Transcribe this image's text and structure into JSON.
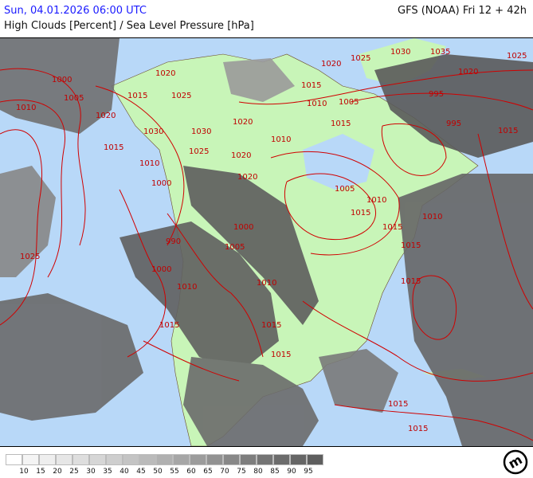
{
  "header": {
    "datetime": "Sun, 04.01.2026 06:00 UTC",
    "model_run": "GFS (NOAA) Fri 12 + 42h",
    "parameter": "High Clouds [Percent] / Sea Level Pressure [hPa]"
  },
  "colors": {
    "ocean": "#b8d8f8",
    "land": "#c8f5b8",
    "isobar": "#d00000",
    "date_text": "#1a1aff"
  },
  "map": {
    "isobar_labels": [
      "1000",
      "1005",
      "1010",
      "1020",
      "1015",
      "1025",
      "1030",
      "1020",
      "1025",
      "1030",
      "1015",
      "1010",
      "1020",
      "1015",
      "1010",
      "1005",
      "1000",
      "1030",
      "1035",
      "1020",
      "1025",
      "1025",
      "995",
      "990",
      "1000",
      "1005",
      "1010",
      "1015",
      "1000",
      "1010",
      "1015",
      "1020",
      "1005",
      "1015",
      "1010",
      "1015",
      "1015",
      "1010",
      "1015",
      "1015",
      "1015",
      "1020",
      "995",
      "1025",
      "1020",
      "1015",
      "1010",
      "1015",
      "1015"
    ]
  },
  "legend": {
    "colors": [
      "#ffffff",
      "#f4f4f4",
      "#eeeeee",
      "#e6e6e6",
      "#dedede",
      "#d6d6d6",
      "#cecece",
      "#c4c4c4",
      "#bababa",
      "#b0b0b0",
      "#a6a6a6",
      "#9c9c9c",
      "#929292",
      "#888888",
      "#7e7e7e",
      "#747474",
      "#6c6c6c",
      "#666666",
      "#5e5e5e"
    ],
    "labels": [
      "10",
      "15",
      "20",
      "25",
      "30",
      "35",
      "40",
      "45",
      "50",
      "55",
      "60",
      "65",
      "70",
      "75",
      "80",
      "85",
      "90",
      "95"
    ]
  },
  "logo": {
    "text": "m"
  }
}
